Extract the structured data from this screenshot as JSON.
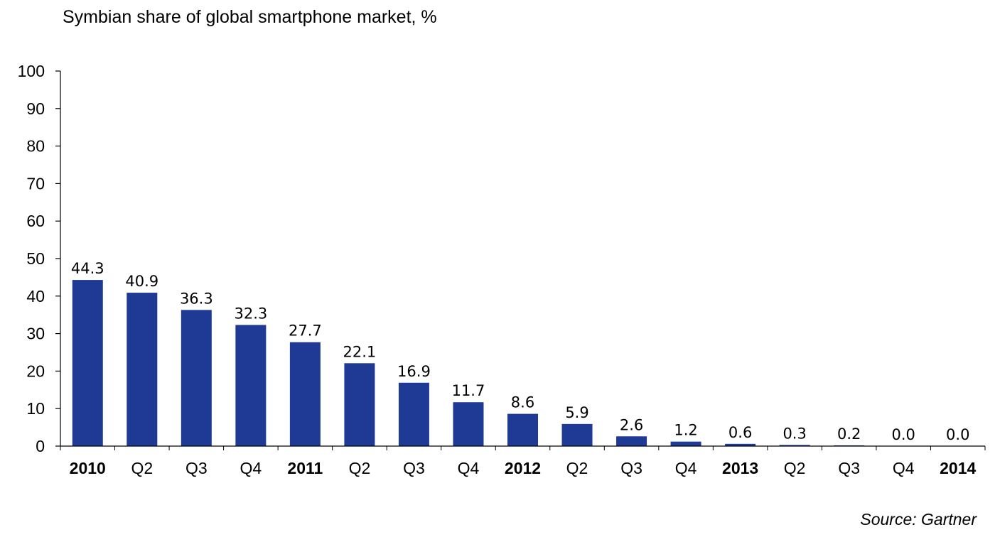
{
  "chart_data": {
    "type": "bar",
    "title": "Symbian share of global smartphone market, %",
    "source": "Source: Gartner",
    "xlabel": "",
    "ylabel": "",
    "ylim": [
      0,
      100
    ],
    "yticks": [
      "0",
      "10",
      "20",
      "30",
      "40",
      "50",
      "60",
      "70",
      "80",
      "90",
      "100"
    ],
    "grid": false,
    "bar_color": "#1e3a94",
    "categories": [
      "2010",
      "Q2",
      "Q3",
      "Q4",
      "2011",
      "Q2",
      "Q3",
      "Q4",
      "2012",
      "Q2",
      "Q3",
      "Q4",
      "2013",
      "Q2",
      "Q3",
      "Q4",
      "2014"
    ],
    "category_bold": [
      true,
      false,
      false,
      false,
      true,
      false,
      false,
      false,
      true,
      false,
      false,
      false,
      true,
      false,
      false,
      false,
      true
    ],
    "values": [
      44.3,
      40.9,
      36.3,
      32.3,
      27.7,
      22.1,
      16.9,
      11.7,
      8.6,
      5.9,
      2.6,
      1.2,
      0.6,
      0.3,
      0.2,
      0.0,
      0.0
    ],
    "data_labels": [
      "44.3",
      "40.9",
      "36.3",
      "32.3",
      "27.7",
      "22.1",
      "16.9",
      "11.7",
      "8.6",
      "5.9",
      "2.6",
      "1.2",
      "0.6",
      "0.3",
      "0.2",
      "0.0",
      "0.0"
    ]
  }
}
